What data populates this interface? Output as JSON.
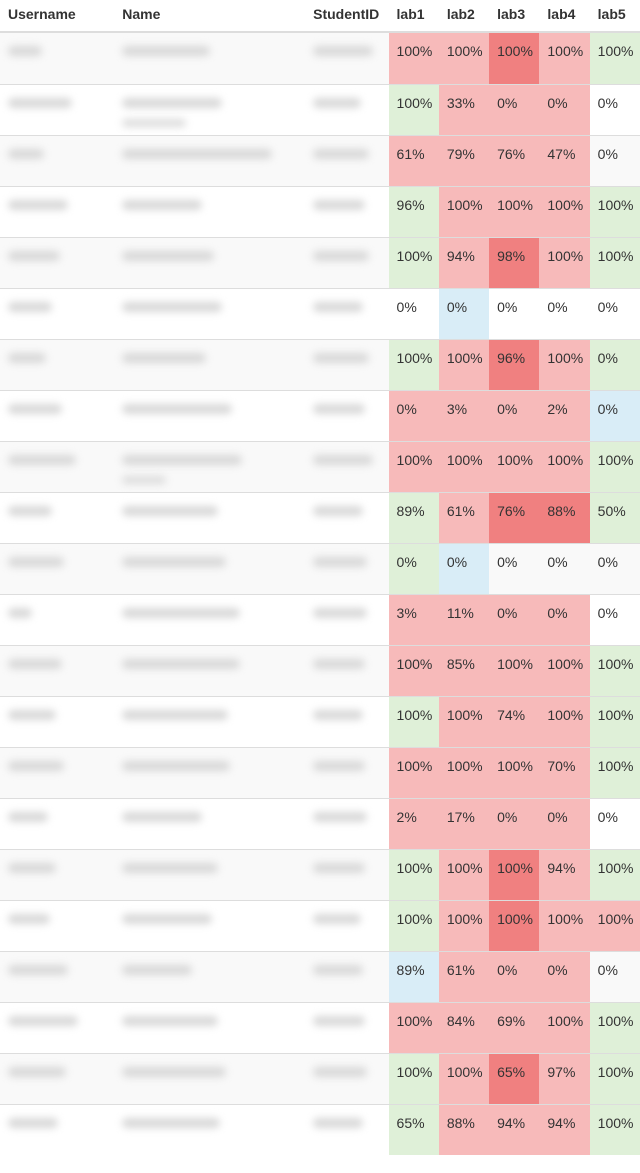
{
  "headers": [
    "Username",
    "Name",
    "StudentID",
    "lab1",
    "lab2",
    "lab3",
    "lab4",
    "lab5"
  ],
  "status_colors": {
    "success": "#dff0d8",
    "danger": "#f7baba",
    "strong": "#f08080",
    "info": "#d9edf7"
  },
  "rows": [
    {
      "labs": [
        {
          "v": "100%",
          "s": "danger"
        },
        {
          "v": "100%",
          "s": "danger"
        },
        {
          "v": "100%",
          "s": "strong"
        },
        {
          "v": "100%",
          "s": "danger"
        },
        {
          "v": "100%",
          "s": "success"
        }
      ]
    },
    {
      "labs": [
        {
          "v": "100%",
          "s": "success"
        },
        {
          "v": "33%",
          "s": "danger"
        },
        {
          "v": "0%",
          "s": "danger"
        },
        {
          "v": "0%",
          "s": "danger"
        },
        {
          "v": "0%",
          "s": "plain"
        }
      ]
    },
    {
      "labs": [
        {
          "v": "61%",
          "s": "danger"
        },
        {
          "v": "79%",
          "s": "danger"
        },
        {
          "v": "76%",
          "s": "danger"
        },
        {
          "v": "47%",
          "s": "danger"
        },
        {
          "v": "0%",
          "s": "plain"
        }
      ]
    },
    {
      "labs": [
        {
          "v": "96%",
          "s": "success"
        },
        {
          "v": "100%",
          "s": "danger"
        },
        {
          "v": "100%",
          "s": "danger"
        },
        {
          "v": "100%",
          "s": "danger"
        },
        {
          "v": "100%",
          "s": "success"
        }
      ]
    },
    {
      "labs": [
        {
          "v": "100%",
          "s": "success"
        },
        {
          "v": "94%",
          "s": "danger"
        },
        {
          "v": "98%",
          "s": "strong"
        },
        {
          "v": "100%",
          "s": "danger"
        },
        {
          "v": "100%",
          "s": "success"
        }
      ]
    },
    {
      "labs": [
        {
          "v": "0%",
          "s": "plain"
        },
        {
          "v": "0%",
          "s": "info"
        },
        {
          "v": "0%",
          "s": "plain"
        },
        {
          "v": "0%",
          "s": "plain"
        },
        {
          "v": "0%",
          "s": "plain"
        }
      ]
    },
    {
      "labs": [
        {
          "v": "100%",
          "s": "success"
        },
        {
          "v": "100%",
          "s": "danger"
        },
        {
          "v": "96%",
          "s": "strong"
        },
        {
          "v": "100%",
          "s": "danger"
        },
        {
          "v": "0%",
          "s": "success"
        }
      ]
    },
    {
      "labs": [
        {
          "v": "0%",
          "s": "danger"
        },
        {
          "v": "3%",
          "s": "danger"
        },
        {
          "v": "0%",
          "s": "danger"
        },
        {
          "v": "2%",
          "s": "danger"
        },
        {
          "v": "0%",
          "s": "info"
        }
      ]
    },
    {
      "labs": [
        {
          "v": "100%",
          "s": "danger"
        },
        {
          "v": "100%",
          "s": "danger"
        },
        {
          "v": "100%",
          "s": "danger"
        },
        {
          "v": "100%",
          "s": "danger"
        },
        {
          "v": "100%",
          "s": "success"
        }
      ]
    },
    {
      "labs": [
        {
          "v": "89%",
          "s": "success"
        },
        {
          "v": "61%",
          "s": "danger"
        },
        {
          "v": "76%",
          "s": "strong"
        },
        {
          "v": "88%",
          "s": "strong"
        },
        {
          "v": "50%",
          "s": "success"
        }
      ]
    },
    {
      "labs": [
        {
          "v": "0%",
          "s": "success"
        },
        {
          "v": "0%",
          "s": "info"
        },
        {
          "v": "0%",
          "s": "plain"
        },
        {
          "v": "0%",
          "s": "plain"
        },
        {
          "v": "0%",
          "s": "plain"
        }
      ]
    },
    {
      "labs": [
        {
          "v": "3%",
          "s": "danger"
        },
        {
          "v": "11%",
          "s": "danger"
        },
        {
          "v": "0%",
          "s": "danger"
        },
        {
          "v": "0%",
          "s": "danger"
        },
        {
          "v": "0%",
          "s": "plain"
        }
      ]
    },
    {
      "labs": [
        {
          "v": "100%",
          "s": "danger"
        },
        {
          "v": "85%",
          "s": "danger"
        },
        {
          "v": "100%",
          "s": "danger"
        },
        {
          "v": "100%",
          "s": "danger"
        },
        {
          "v": "100%",
          "s": "success"
        }
      ]
    },
    {
      "labs": [
        {
          "v": "100%",
          "s": "success"
        },
        {
          "v": "100%",
          "s": "danger"
        },
        {
          "v": "74%",
          "s": "danger"
        },
        {
          "v": "100%",
          "s": "danger"
        },
        {
          "v": "100%",
          "s": "success"
        }
      ]
    },
    {
      "labs": [
        {
          "v": "100%",
          "s": "danger"
        },
        {
          "v": "100%",
          "s": "danger"
        },
        {
          "v": "100%",
          "s": "danger"
        },
        {
          "v": "70%",
          "s": "danger"
        },
        {
          "v": "100%",
          "s": "success"
        }
      ]
    },
    {
      "labs": [
        {
          "v": "2%",
          "s": "danger"
        },
        {
          "v": "17%",
          "s": "danger"
        },
        {
          "v": "0%",
          "s": "danger"
        },
        {
          "v": "0%",
          "s": "danger"
        },
        {
          "v": "0%",
          "s": "plain"
        }
      ]
    },
    {
      "labs": [
        {
          "v": "100%",
          "s": "success"
        },
        {
          "v": "100%",
          "s": "danger"
        },
        {
          "v": "100%",
          "s": "strong"
        },
        {
          "v": "94%",
          "s": "danger"
        },
        {
          "v": "100%",
          "s": "success"
        }
      ]
    },
    {
      "labs": [
        {
          "v": "100%",
          "s": "success"
        },
        {
          "v": "100%",
          "s": "danger"
        },
        {
          "v": "100%",
          "s": "strong"
        },
        {
          "v": "100%",
          "s": "danger"
        },
        {
          "v": "100%",
          "s": "danger"
        }
      ]
    },
    {
      "labs": [
        {
          "v": "89%",
          "s": "info"
        },
        {
          "v": "61%",
          "s": "danger"
        },
        {
          "v": "0%",
          "s": "danger"
        },
        {
          "v": "0%",
          "s": "danger"
        },
        {
          "v": "0%",
          "s": "plain"
        }
      ]
    },
    {
      "labs": [
        {
          "v": "100%",
          "s": "danger"
        },
        {
          "v": "84%",
          "s": "danger"
        },
        {
          "v": "69%",
          "s": "danger"
        },
        {
          "v": "100%",
          "s": "danger"
        },
        {
          "v": "100%",
          "s": "success"
        }
      ]
    },
    {
      "labs": [
        {
          "v": "100%",
          "s": "success"
        },
        {
          "v": "100%",
          "s": "danger"
        },
        {
          "v": "65%",
          "s": "strong"
        },
        {
          "v": "97%",
          "s": "danger"
        },
        {
          "v": "100%",
          "s": "success"
        }
      ]
    },
    {
      "labs": [
        {
          "v": "65%",
          "s": "success"
        },
        {
          "v": "88%",
          "s": "danger"
        },
        {
          "v": "94%",
          "s": "danger"
        },
        {
          "v": "94%",
          "s": "danger"
        },
        {
          "v": "100%",
          "s": "success"
        }
      ]
    }
  ]
}
